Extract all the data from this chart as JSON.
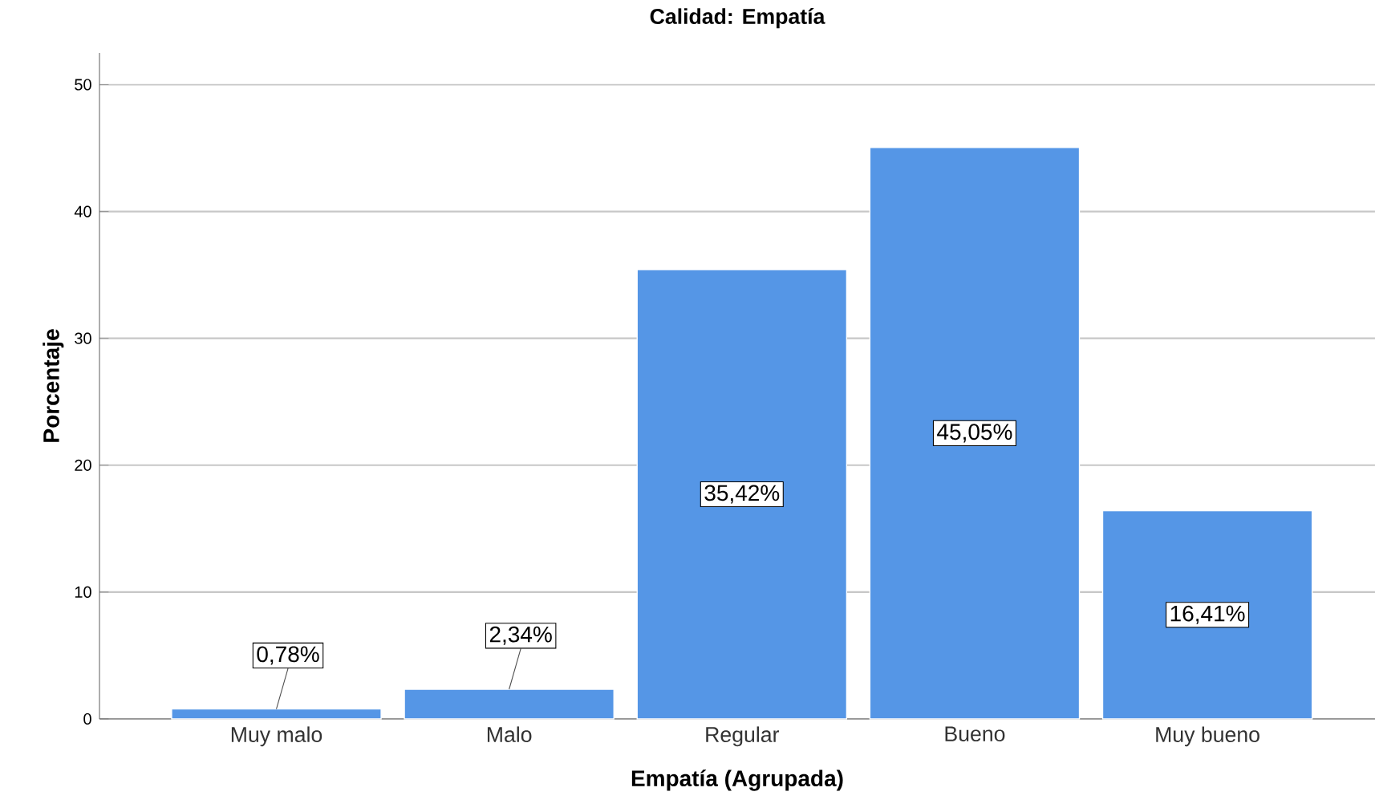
{
  "chart_data": {
    "type": "bar",
    "title": "Calidad: Empatía",
    "xlabel": "Empatía (Agrupada)",
    "ylabel": "Porcentaje",
    "categories": [
      "Muy malo",
      "Malo",
      "Regular",
      "Bueno",
      "Muy bueno"
    ],
    "values": [
      0.78,
      2.34,
      35.42,
      45.05,
      16.41
    ],
    "value_labels": [
      "0,78%",
      "2,34%",
      "35,42%",
      "45,05%",
      "16,41%"
    ],
    "color": "#5596e6",
    "ylim": [
      0,
      52.5
    ],
    "yticks": [
      0,
      10,
      20,
      30,
      40,
      50
    ],
    "grid": "y"
  }
}
